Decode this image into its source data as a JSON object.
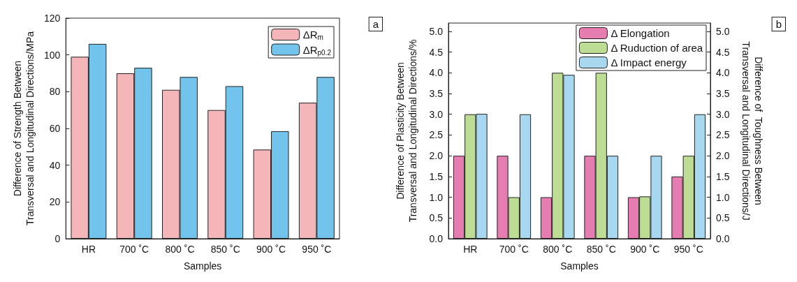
{
  "chart_data": [
    {
      "type": "bar",
      "xlabel": "Samples",
      "ylabel": "Difference of Strength Between\nTransversal and Longitudinal Directions/MPa",
      "categories": [
        "HR",
        "700 ˚C",
        "800 ˚C",
        "850 ˚C",
        "900 ˚C",
        "950 ˚C"
      ],
      "series": [
        {
          "name": "ΔR$_{m}$",
          "color": "#f4b6b8",
          "values": [
            99,
            90,
            81,
            70,
            48.5,
            74
          ]
        },
        {
          "name": "ΔR$_{p0.2}$",
          "color": "#72c4ec",
          "values": [
            106,
            93,
            88,
            83,
            58.5,
            88
          ]
        }
      ],
      "ylim": [
        0,
        120
      ],
      "yticks": [
        0,
        20,
        40,
        60,
        80,
        100,
        120
      ],
      "grid": false,
      "legend": "top right",
      "annotations": [
        "a"
      ]
    },
    {
      "type": "bar",
      "xlabel": "Samples",
      "ylabel": "Difference of Plasticity Between\nTransversal and Longitudinal Directions/%",
      "y2label": "Difference of  Toughness Between\nTransversal and Longitudinal Directions/J",
      "categories": [
        "HR",
        "700 ˚C",
        "800 ˚C",
        "850 ˚C",
        "900 ˚C",
        "950 ˚C"
      ],
      "series": [
        {
          "name": "Δ Elongation",
          "color": "#e57db0",
          "values": [
            2,
            2,
            1,
            2,
            1,
            1.5
          ]
        },
        {
          "name": "Δ Ruduction of area",
          "color": "#bddc94",
          "values": [
            3,
            1,
            4,
            4,
            1.02,
            2
          ]
        },
        {
          "name": "Δ Impact energy",
          "color": "#a7d8f0",
          "values": [
            3.01,
            3,
            3.95,
            2,
            2,
            3
          ]
        }
      ],
      "ylim": [
        0,
        5.2
      ],
      "yticks": [
        {
          "value": 0,
          "label": "0.0"
        },
        0.5,
        {
          "value": 1,
          "label": "1.0"
        },
        1.5,
        {
          "value": 2,
          "label": "2.0"
        },
        2.5,
        {
          "value": 3,
          "label": "3.0"
        },
        3.5,
        {
          "value": 4,
          "label": "4.0"
        },
        4.5,
        {
          "value": 5,
          "label": "5.0"
        }
      ],
      "y2lim": [
        0,
        5.2
      ],
      "y2ticks": [
        {
          "value": 0,
          "label": "0.0"
        },
        0.5,
        {
          "value": 1,
          "label": "1.0"
        },
        1.5,
        {
          "value": 2,
          "label": "2.0"
        },
        2.5,
        {
          "value": 3,
          "label": "3.0"
        },
        3.5,
        {
          "value": 4,
          "label": "4.0"
        },
        4.5,
        {
          "value": 5,
          "label": "5.0"
        }
      ],
      "grid": false,
      "legend": "top right",
      "annotations": [
        "b"
      ]
    }
  ]
}
